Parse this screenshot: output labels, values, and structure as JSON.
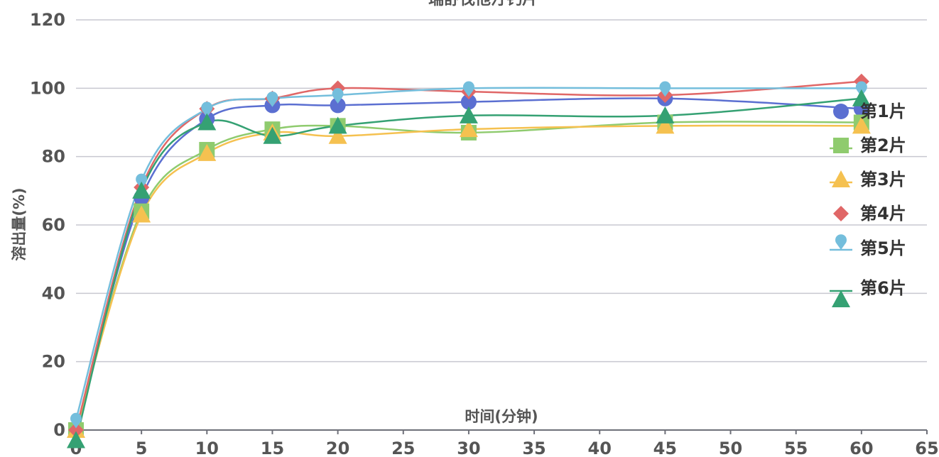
{
  "chart_data": {
    "type": "line",
    "title": "瑞舒伐他汀钙片",
    "xlabel": "时间(分钟)",
    "ylabel": "溶出量(%)",
    "xlim": [
      0,
      65
    ],
    "ylim": [
      0,
      120
    ],
    "x_ticks": [
      0,
      5,
      10,
      15,
      20,
      25,
      30,
      35,
      40,
      45,
      50,
      55,
      60,
      65
    ],
    "y_ticks": [
      0,
      20,
      40,
      60,
      80,
      100,
      120
    ],
    "grid": "horizontal",
    "legend_position": "right",
    "x": [
      0,
      5,
      10,
      15,
      20,
      30,
      45,
      60
    ],
    "series": [
      {
        "name": "第1片",
        "color": "#5b6fd1",
        "marker": "circle",
        "values": [
          0,
          68,
          91,
          95,
          95,
          96,
          97,
          94
        ]
      },
      {
        "name": "第2片",
        "color": "#8fcb6e",
        "marker": "square",
        "values": [
          0,
          64,
          82,
          88,
          89,
          87,
          90,
          90
        ]
      },
      {
        "name": "第3片",
        "color": "#f5c150",
        "marker": "triangle",
        "values": [
          0,
          63,
          81,
          87,
          86,
          88,
          89,
          89
        ]
      },
      {
        "name": "第4片",
        "color": "#e06767",
        "marker": "diamond",
        "values": [
          0,
          71,
          94,
          97,
          100,
          99,
          98,
          102
        ]
      },
      {
        "name": "第5片",
        "color": "#74bedc",
        "marker": "pin",
        "values": [
          3,
          73,
          94,
          97,
          98,
          100,
          100,
          100
        ]
      },
      {
        "name": "第6片",
        "color": "#35a173",
        "marker": "triangle",
        "values": [
          -3,
          70,
          90,
          86,
          89,
          92,
          92,
          97
        ]
      }
    ]
  }
}
